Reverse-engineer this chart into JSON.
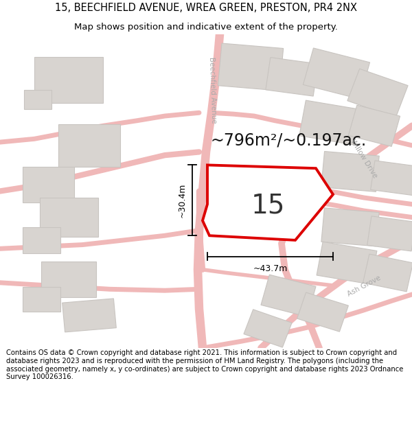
{
  "title_line1": "15, BEECHFIELD AVENUE, WREA GREEN, PRESTON, PR4 2NX",
  "title_line2": "Map shows position and indicative extent of the property.",
  "footer_text": "Contains OS data © Crown copyright and database right 2021. This information is subject to Crown copyright and database rights 2023 and is reproduced with the permission of HM Land Registry. The polygons (including the associated geometry, namely x, y co-ordinates) are subject to Crown copyright and database rights 2023 Ordnance Survey 100026316.",
  "area_text": "~796m²/~0.197ac.",
  "property_number": "15",
  "width_label": "~43.7m",
  "height_label": "~30.4m",
  "map_bg": "#f5f3f0",
  "road_color": "#f0b8b8",
  "road_lw": 1.2,
  "property_fill": "#ffffff",
  "property_stroke": "#dd0000",
  "building_fill": "#d8d4d0",
  "building_stroke": "#c8c4c0",
  "title_fontsize": 10.5,
  "subtitle_fontsize": 9.5,
  "footer_fontsize": 7.2,
  "label_color": "#aaaaaa",
  "dim_color": "#000000",
  "num_color": "#333333",
  "area_fontsize": 17,
  "num_fontsize": 28,
  "dim_fontsize": 9
}
